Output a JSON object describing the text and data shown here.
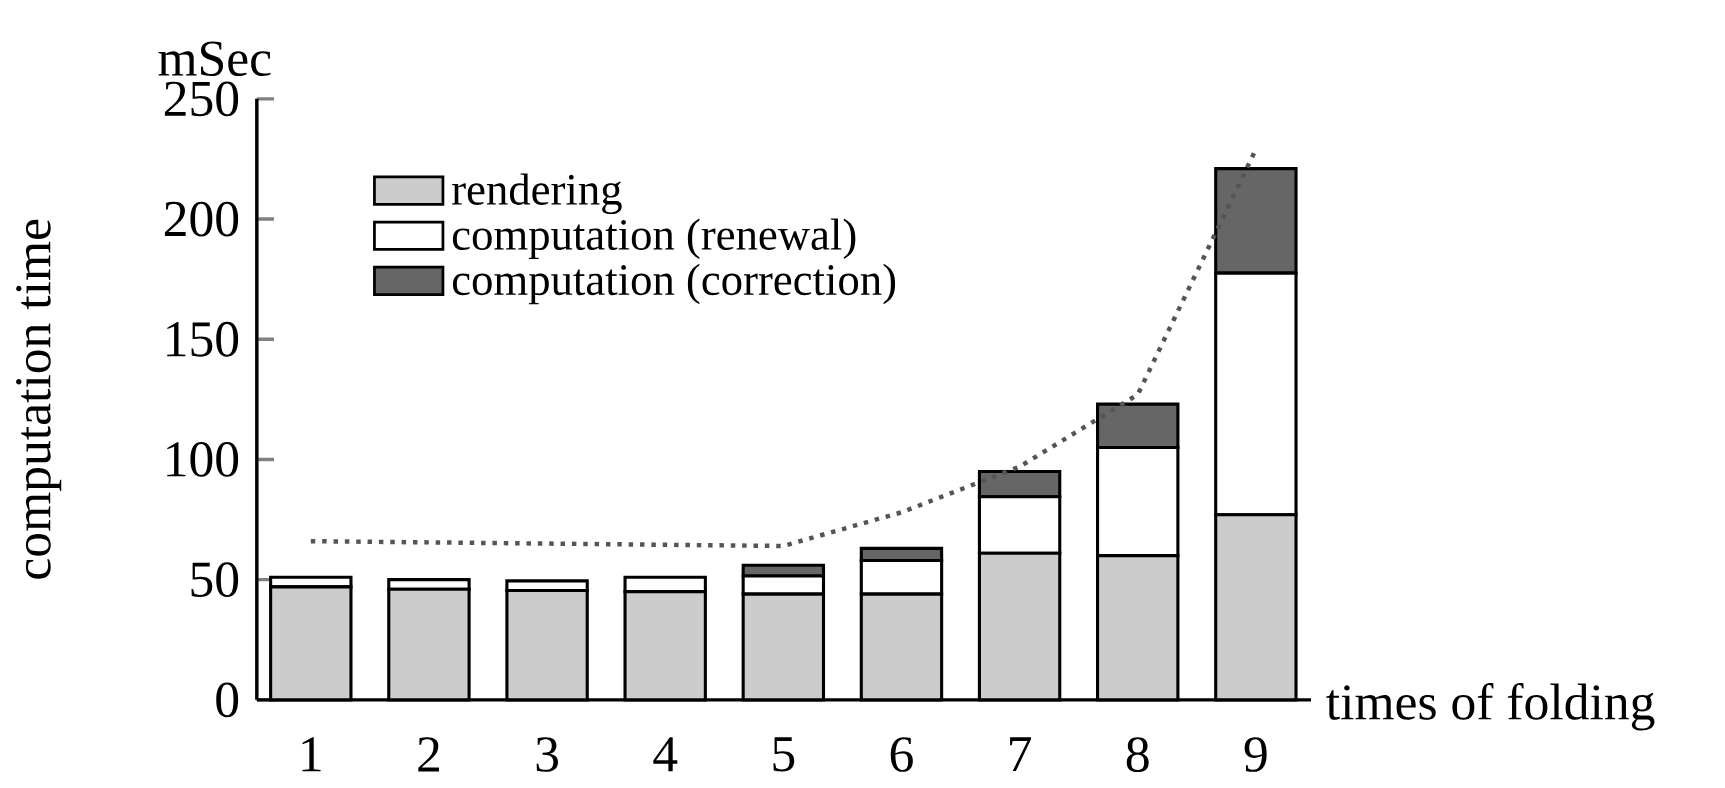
{
  "chart_data": {
    "type": "bar",
    "stacked": true,
    "xlabel": "times of folding",
    "ylabel": "computation time",
    "annotations": [
      "mSec"
    ],
    "categories": [
      "1",
      "2",
      "3",
      "4",
      "5",
      "6",
      "7",
      "8",
      "9"
    ],
    "series": [
      {
        "name": "rendering",
        "color": "#cccccc",
        "values": [
          47,
          46,
          45.5,
          45,
          44,
          44,
          61,
          60,
          77
        ]
      },
      {
        "name": "computation (renewal)",
        "color": "#ffffff",
        "values": [
          4,
          4,
          4,
          6,
          7.5,
          14,
          23.5,
          45,
          100.5
        ]
      },
      {
        "name": "computation (correction)",
        "color": "#666666",
        "values": [
          0,
          0,
          0,
          0,
          4.5,
          5,
          10.5,
          18,
          43.5
        ]
      },
      {
        "type": "line",
        "color": "#555555",
        "line_style": "dotted",
        "values": [
          66,
          65.5,
          65,
          64.5,
          64,
          78,
          97,
          127,
          229
        ]
      }
    ],
    "ylim": [
      0,
      250
    ],
    "yticks": [
      0,
      50,
      100,
      150,
      200,
      250
    ],
    "legend": "top left"
  }
}
